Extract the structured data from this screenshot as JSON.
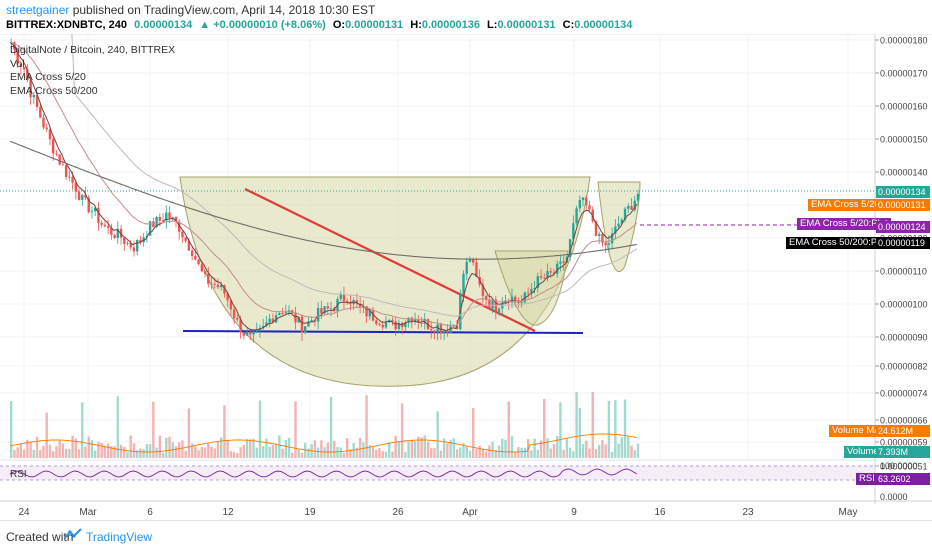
{
  "header": {
    "author": "streetgainer",
    "published": " published on TradingView.com, April 14, 2018 10:30 EST",
    "symbol": "BITTREX:XDNBTC, 240",
    "last": "0.00000134",
    "change": "▲ +0.00000010 (+8.06%)",
    "o_label": "O:",
    "o": "0.00000131",
    "h_label": "H:",
    "h": "0.00000136",
    "l_label": "L:",
    "l": "0.00000131",
    "c_label": "C:",
    "c": "0.00000134"
  },
  "legend": {
    "title": "DigitalNote / Bitcoin, 240, BITTREX",
    "vol": "Vol",
    "ema1": "EMA Cross 5/20",
    "ema2": "EMA Cross 50/200"
  },
  "rsi_label": "RSI",
  "footer": {
    "created": "Created with",
    "brand": "TradingView"
  },
  "colors": {
    "up": "#26a69a",
    "down": "#ef5350",
    "ema5": "#7e3f3f",
    "ema20": "#c58c8c",
    "ema50": "#bbbbbb",
    "ema200": "#6d6d6d",
    "pattern_fill": "#d6d7a4",
    "trendline": "#e53935",
    "support": "#1a23c2",
    "rsi": "#7b1fa2"
  },
  "price_tags": {
    "last": "0.00000134",
    "ema5_20": "0.00000131",
    "ema5_20_b": "0.00000124",
    "ema50_200": "0.00000119"
  },
  "tag_labels": {
    "ema5_20": "EMA Cross 5/20:Plot",
    "ema5_20_b": "EMA Cross 5/20:Plot",
    "ema50_200": "EMA Cross 50/200:Plot",
    "volume_ma": "Volume MA",
    "volume": "Volume",
    "rsi": "RSI"
  },
  "volume_values": {
    "ma": "24.612M",
    "vol": "7.393M"
  },
  "rsi_value": "63.2602",
  "chart_data": {
    "type": "candlestick",
    "price_axis_ticks": [
      "0.00000180",
      "0.00000170",
      "0.00000160",
      "0.00000150",
      "0.00000140",
      "0.00000130",
      "0.00000120",
      "0.00000110",
      "0.00000100",
      "0.00000090",
      "0.00000082",
      "0.00000074",
      "0.00000066",
      "0.00000059",
      "0.00000051"
    ],
    "rsi_axis_ticks": [
      "100.0000",
      "0.0000"
    ],
    "x_ticks": [
      "24",
      "Mar",
      "6",
      "12",
      "19",
      "26",
      "Apr",
      "9",
      "16",
      "23",
      "May"
    ],
    "price_path": [
      [
        0,
        180
      ],
      [
        1,
        175
      ],
      [
        2,
        172
      ],
      [
        3,
        165
      ],
      [
        4,
        160
      ],
      [
        5,
        155
      ],
      [
        6,
        150
      ],
      [
        7,
        146
      ],
      [
        8,
        142
      ],
      [
        9,
        139
      ],
      [
        10,
        136
      ],
      [
        11,
        132
      ],
      [
        12,
        130
      ],
      [
        13,
        128
      ],
      [
        14,
        125
      ],
      [
        15,
        123
      ],
      [
        16,
        122
      ],
      [
        17,
        121
      ],
      [
        18,
        119
      ],
      [
        19,
        118
      ],
      [
        20,
        120
      ],
      [
        21,
        123
      ],
      [
        22,
        125
      ],
      [
        23,
        126
      ],
      [
        24,
        128
      ],
      [
        25,
        126
      ],
      [
        26,
        124
      ],
      [
        27,
        120
      ],
      [
        28,
        117
      ],
      [
        29,
        112
      ],
      [
        30,
        108
      ],
      [
        31,
        107
      ],
      [
        32,
        106
      ],
      [
        33,
        104
      ],
      [
        34,
        100
      ],
      [
        35,
        95
      ],
      [
        36,
        92
      ],
      [
        37,
        90
      ],
      [
        38,
        91
      ],
      [
        39,
        93
      ],
      [
        40,
        96
      ],
      [
        41,
        98
      ],
      [
        42,
        99
      ],
      [
        43,
        98
      ],
      [
        44,
        96
      ],
      [
        45,
        94
      ],
      [
        46,
        95
      ],
      [
        47,
        97
      ],
      [
        48,
        98
      ],
      [
        49,
        99
      ],
      [
        50,
        100
      ],
      [
        51,
        102
      ],
      [
        52,
        103
      ],
      [
        53,
        101
      ],
      [
        54,
        99
      ],
      [
        55,
        98
      ],
      [
        56,
        97
      ],
      [
        57,
        96
      ],
      [
        58,
        95
      ],
      [
        59,
        94
      ],
      [
        60,
        95
      ],
      [
        61,
        96
      ],
      [
        62,
        97
      ],
      [
        63,
        96
      ],
      [
        64,
        95
      ],
      [
        65,
        94
      ],
      [
        66,
        94
      ],
      [
        67,
        93
      ],
      [
        68,
        94
      ],
      [
        69,
        95
      ],
      [
        70,
        110
      ],
      [
        71,
        115
      ],
      [
        72,
        108
      ],
      [
        73,
        104
      ],
      [
        74,
        101
      ],
      [
        75,
        100
      ],
      [
        76,
        102
      ],
      [
        77,
        103
      ],
      [
        78,
        102
      ],
      [
        79,
        101
      ],
      [
        80,
        104
      ],
      [
        81,
        107
      ],
      [
        82,
        108
      ],
      [
        83,
        109
      ],
      [
        84,
        110
      ],
      [
        85,
        112
      ],
      [
        86,
        115
      ],
      [
        87,
        124
      ],
      [
        88,
        132
      ],
      [
        89,
        130
      ],
      [
        90,
        126
      ],
      [
        91,
        120
      ],
      [
        92,
        118
      ],
      [
        93,
        121
      ],
      [
        94,
        125
      ],
      [
        95,
        128
      ],
      [
        96,
        131
      ],
      [
        97,
        134
      ]
    ]
  }
}
